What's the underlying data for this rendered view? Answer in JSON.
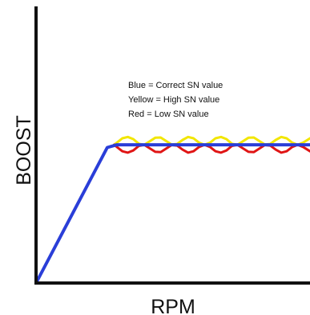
{
  "chart_data": {
    "type": "line",
    "title": "",
    "xlabel": "RPM",
    "ylabel": "BOOST",
    "xlim": [
      0,
      10
    ],
    "ylim": [
      0,
      10
    ],
    "grid": false,
    "legend_placement": "top-center",
    "legend": [
      {
        "text": "Blue = Correct SN value"
      },
      {
        "text": "Yellow = High SN value"
      },
      {
        "text": "Red = Low SN value"
      }
    ],
    "series": [
      {
        "color": "#f2e600",
        "stroke_width": 3,
        "x": [
          2.85,
          2.95,
          3.15,
          3.35,
          3.55,
          3.75,
          3.95,
          4.15,
          4.35,
          4.55,
          4.75,
          4.95,
          5.15,
          5.35,
          5.55,
          5.75,
          5.95,
          6.15,
          6.35,
          6.55,
          6.75,
          6.95,
          7.15,
          7.35,
          7.55,
          7.75,
          7.95,
          8.15,
          8.35,
          8.55,
          8.75,
          8.95,
          9.15,
          9.35,
          9.55,
          9.75,
          10.0
        ],
        "y": [
          5.1,
          5.18,
          5.34,
          5.39,
          5.31,
          5.14,
          5.1,
          5.23,
          5.36,
          5.37,
          5.24,
          5.11,
          5.13,
          5.28,
          5.39,
          5.34,
          5.18,
          5.1,
          5.18,
          5.34,
          5.39,
          5.31,
          5.14,
          5.1,
          5.23,
          5.36,
          5.37,
          5.24,
          5.11,
          5.13,
          5.28,
          5.39,
          5.34,
          5.18,
          5.1,
          5.18,
          5.34
        ]
      },
      {
        "color": "#e01515",
        "stroke_width": 3,
        "x": [
          2.85,
          2.95,
          3.15,
          3.35,
          3.55,
          3.75,
          3.95,
          4.15,
          4.35,
          4.55,
          4.75,
          4.95,
          5.15,
          5.35,
          5.55,
          5.75,
          5.95,
          6.15,
          6.35,
          6.55,
          6.75,
          6.95,
          7.15,
          7.35,
          7.55,
          7.75,
          7.95,
          8.15,
          8.35,
          8.55,
          8.75,
          8.95,
          9.15,
          9.35,
          9.55,
          9.75,
          10.0
        ],
        "y": [
          5.1,
          5.02,
          4.86,
          4.81,
          4.89,
          5.06,
          5.1,
          4.97,
          4.84,
          4.83,
          4.96,
          5.09,
          5.07,
          4.92,
          4.81,
          4.86,
          5.02,
          5.1,
          5.02,
          4.86,
          4.81,
          4.89,
          5.06,
          5.1,
          4.97,
          4.84,
          4.83,
          4.96,
          5.09,
          5.07,
          4.92,
          4.81,
          4.86,
          5.02,
          5.1,
          5.02,
          4.86
        ]
      },
      {
        "color": "#2a3ed8",
        "stroke_width": 4,
        "x": [
          0,
          2.6,
          2.95,
          10.0
        ],
        "y": [
          0,
          5.0,
          5.1,
          5.1
        ]
      }
    ]
  }
}
